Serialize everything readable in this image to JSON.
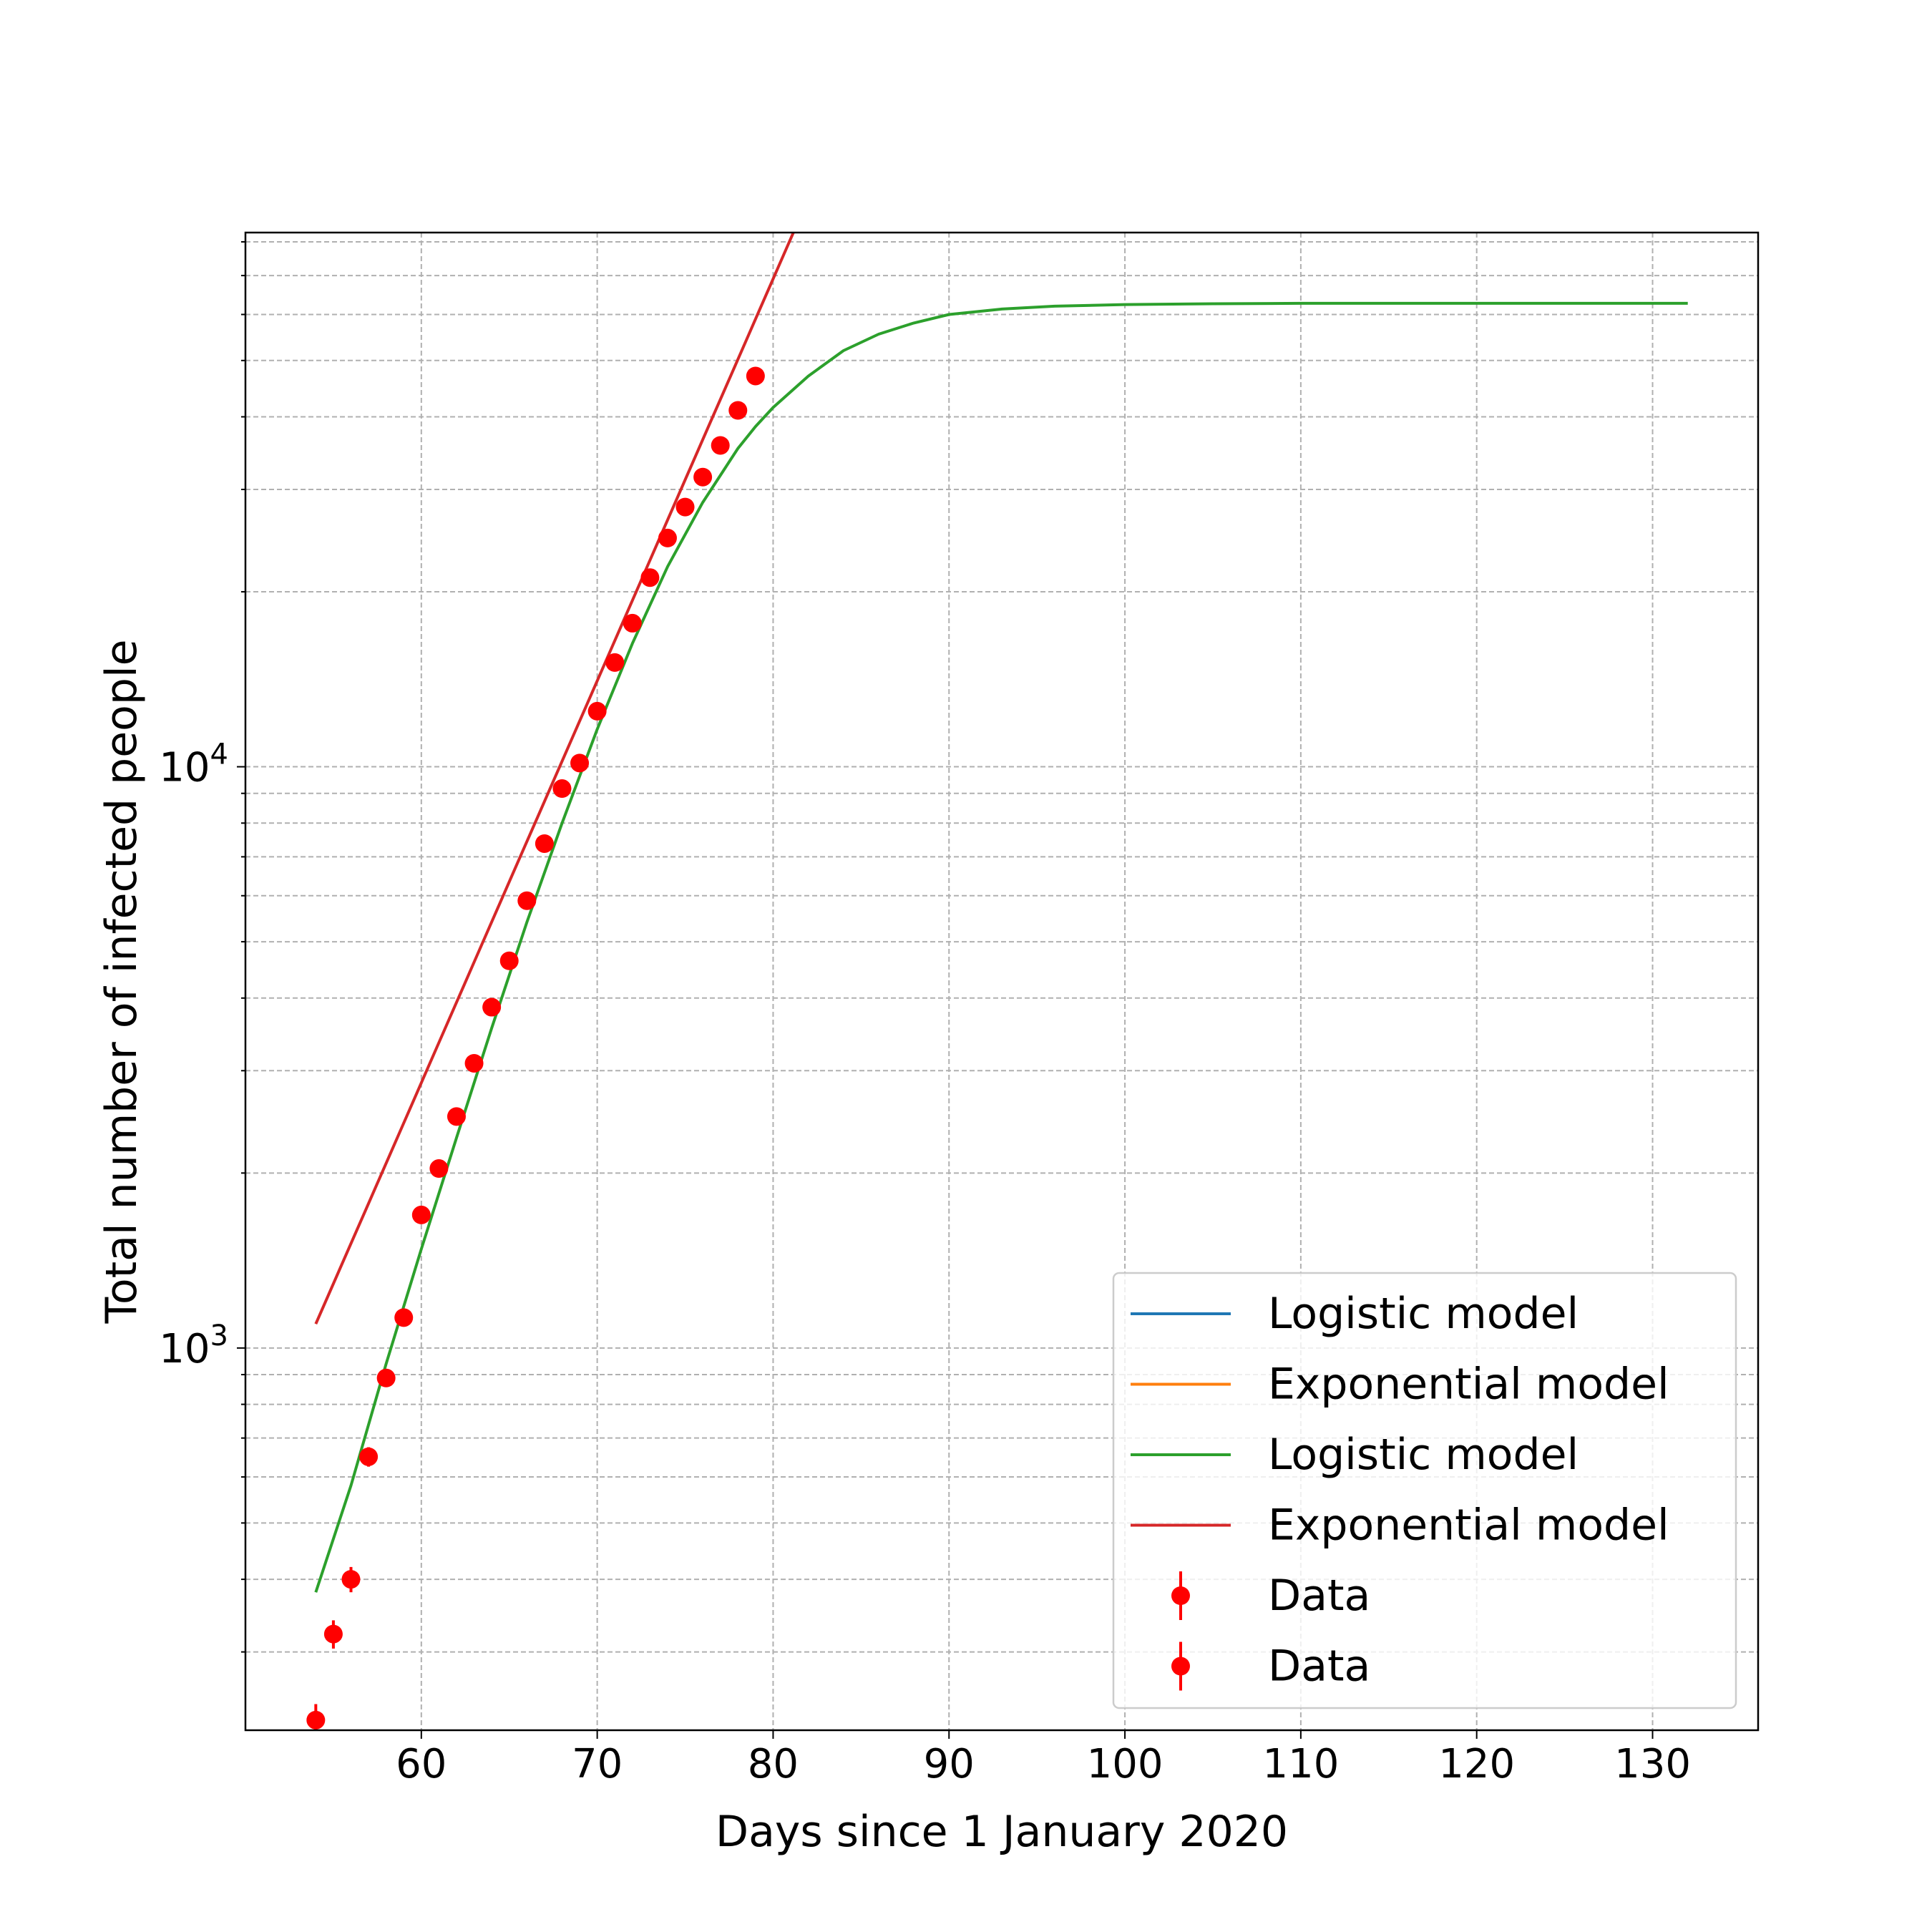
{
  "chart_data": {
    "type": "line",
    "title": "",
    "xlabel": "Days since 1 January 2020",
    "ylabel": "Total number of infected people",
    "xscale": "linear",
    "yscale": "log",
    "xlim": [
      50,
      136
    ],
    "ylim": [
      220,
      83000
    ],
    "xticks": [
      60,
      70,
      80,
      90,
      100,
      110,
      120,
      130
    ],
    "yticks_major": [
      {
        "value": 1000,
        "base": "10",
        "exp": "3"
      },
      {
        "value": 10000,
        "base": "10",
        "exp": "4"
      }
    ],
    "grid": true,
    "legend_position": "lower right",
    "series": [
      {
        "name": "Logistic model",
        "kind": "line",
        "color": "#1f77b4",
        "drawn": false
      },
      {
        "name": "Exponential model",
        "kind": "line",
        "color": "#ff7f0e",
        "drawn": false
      },
      {
        "name": "Logistic model",
        "kind": "line",
        "color": "#2ca02c",
        "drawn": true,
        "x": [
          54,
          56,
          58,
          60,
          62,
          64,
          66,
          68,
          70,
          72,
          74,
          76,
          78,
          79,
          80,
          82,
          84,
          86,
          88,
          90,
          93,
          96,
          100,
          105,
          110,
          120,
          132
        ],
        "y": [
          380,
          580,
          940,
          1480,
          2300,
          3550,
          5400,
          8000,
          11600,
          16300,
          22100,
          28500,
          35300,
          38500,
          41500,
          47000,
          52000,
          55500,
          58000,
          60000,
          61300,
          62000,
          62400,
          62600,
          62700,
          62700,
          62700
        ]
      },
      {
        "name": "Exponential model",
        "kind": "line",
        "color": "#d62728",
        "drawn": true,
        "x": [
          54,
          82
        ],
        "y": [
          1100,
          95000
        ]
      },
      {
        "name": "Data",
        "kind": "errorbar",
        "color": "#ff0000",
        "drawn": true,
        "x": [
          54,
          55,
          56,
          57,
          58,
          59,
          60,
          61,
          62,
          63,
          64,
          65,
          66,
          67,
          68,
          69,
          70,
          71,
          72,
          73,
          74,
          75,
          76,
          77,
          78,
          79
        ],
        "y": [
          229,
          322,
          400,
          650,
          888,
          1128,
          1694,
          2036,
          2502,
          3089,
          3858,
          4636,
          5883,
          7375,
          9172,
          10149,
          12462,
          15113,
          17660,
          21157,
          24747,
          27980,
          31506,
          35713,
          41035,
          47021
        ],
        "yerr": [
          15,
          18,
          20,
          25,
          30,
          34,
          41,
          45,
          50,
          56,
          62,
          68,
          77,
          86,
          96,
          101,
          112,
          123,
          133,
          145,
          157,
          167,
          177,
          189,
          203,
          217
        ]
      },
      {
        "name": "Data",
        "kind": "errorbar",
        "color": "#ff0000",
        "drawn": false
      }
    ]
  }
}
